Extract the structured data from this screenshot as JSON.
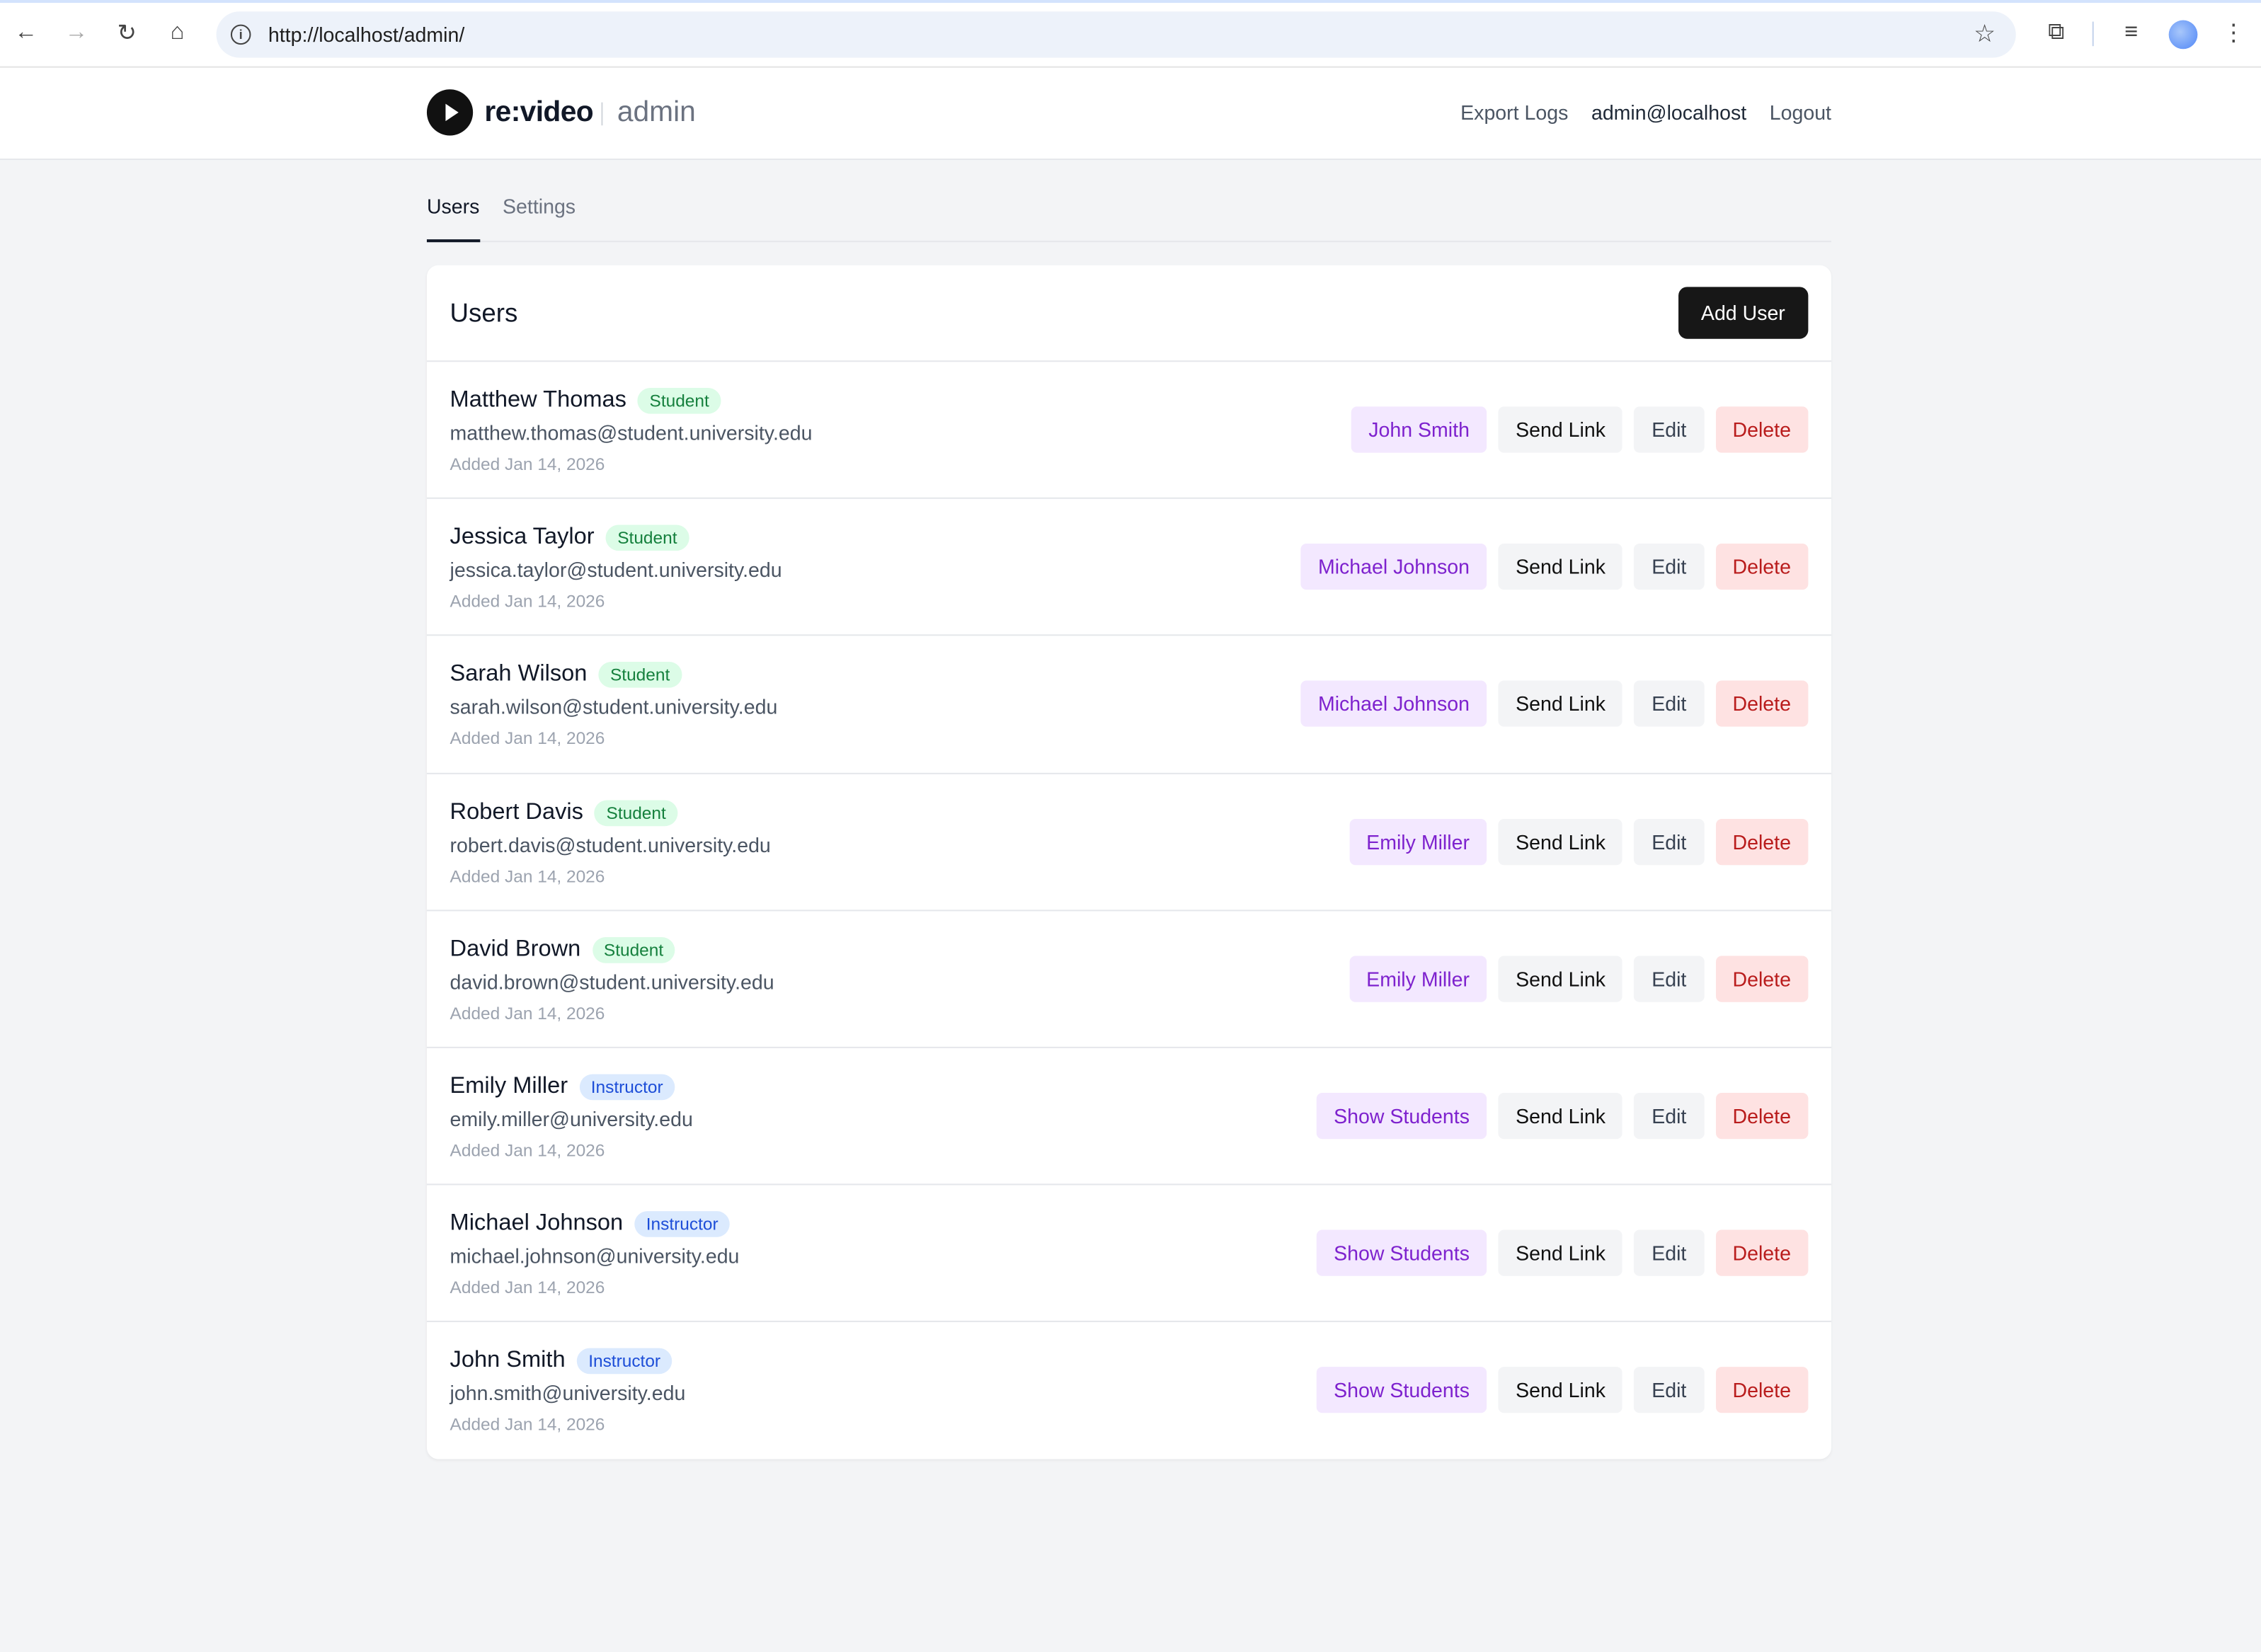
{
  "browser": {
    "url": "http://localhost/admin/"
  },
  "header": {
    "brand": "re:video",
    "section": "admin",
    "export_logs": "Export Logs",
    "user_email": "admin@localhost",
    "logout": "Logout"
  },
  "tabs": [
    {
      "label": "Users",
      "active": true
    },
    {
      "label": "Settings",
      "active": false
    }
  ],
  "card": {
    "title": "Users",
    "add_user": "Add User"
  },
  "actions": {
    "send_link": "Send Link",
    "edit": "Edit",
    "delete": "Delete"
  },
  "users": [
    {
      "name": "Matthew Thomas",
      "role": "Student",
      "email": "matthew.thomas@student.university.edu",
      "added": "Added Jan 14, 2026",
      "primary_action": "John Smith"
    },
    {
      "name": "Jessica Taylor",
      "role": "Student",
      "email": "jessica.taylor@student.university.edu",
      "added": "Added Jan 14, 2026",
      "primary_action": "Michael Johnson"
    },
    {
      "name": "Sarah Wilson",
      "role": "Student",
      "email": "sarah.wilson@student.university.edu",
      "added": "Added Jan 14, 2026",
      "primary_action": "Michael Johnson"
    },
    {
      "name": "Robert Davis",
      "role": "Student",
      "email": "robert.davis@student.university.edu",
      "added": "Added Jan 14, 2026",
      "primary_action": "Emily Miller"
    },
    {
      "name": "David Brown",
      "role": "Student",
      "email": "david.brown@student.university.edu",
      "added": "Added Jan 14, 2026",
      "primary_action": "Emily Miller"
    },
    {
      "name": "Emily Miller",
      "role": "Instructor",
      "email": "emily.miller@university.edu",
      "added": "Added Jan 14, 2026",
      "primary_action": "Show Students"
    },
    {
      "name": "Michael Johnson",
      "role": "Instructor",
      "email": "michael.johnson@university.edu",
      "added": "Added Jan 14, 2026",
      "primary_action": "Show Students"
    },
    {
      "name": "John Smith",
      "role": "Instructor",
      "email": "john.smith@university.edu",
      "added": "Added Jan 14, 2026",
      "primary_action": "Show Students"
    }
  ],
  "colors": {
    "student_badge": "#dcfce7",
    "instructor_badge": "#dbeafe",
    "primary_action": "#f3e8ff",
    "delete": "#fee2e2",
    "add_user": "#171717"
  }
}
